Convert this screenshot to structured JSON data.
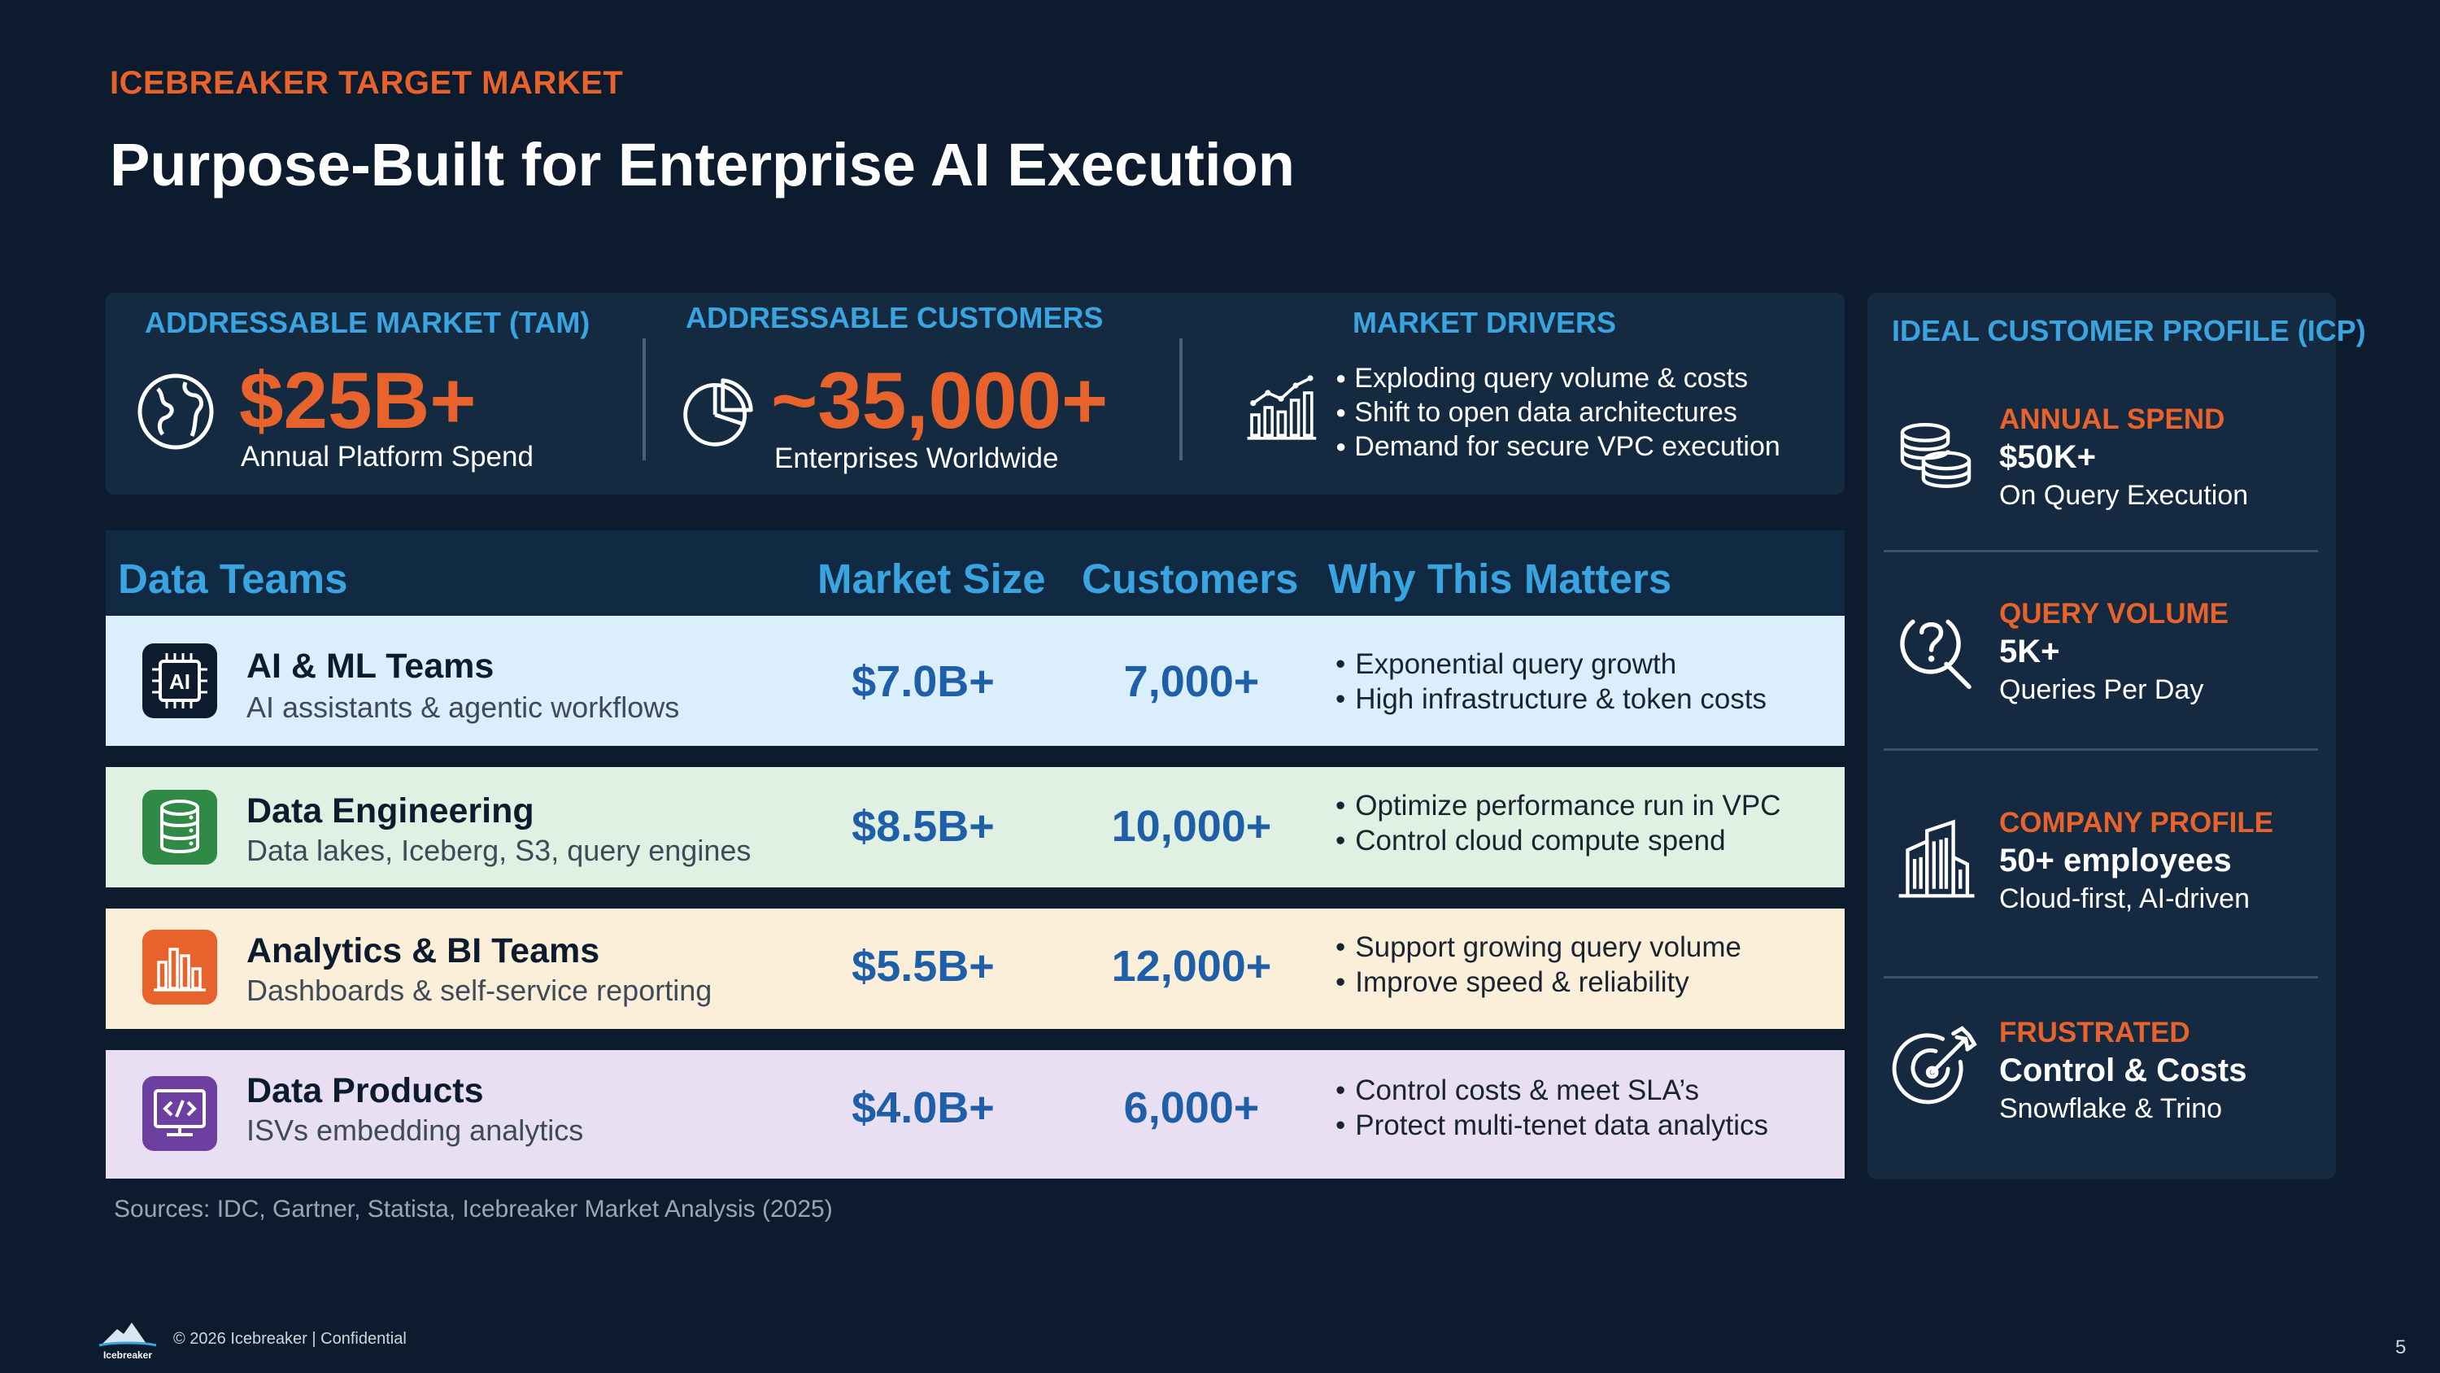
{
  "eyebrow": "ICEBREAKER TARGET MARKET",
  "title": "Purpose-Built for Enterprise AI Execution",
  "stats": {
    "tam": {
      "label": "ADDRESSABLE MARKET (TAM)",
      "value": "$25B+",
      "sub": "Annual Platform Spend",
      "icon": "globe-icon"
    },
    "customers": {
      "label": "ADDRESSABLE CUSTOMERS",
      "value": "~35,000+",
      "sub": "Enterprises Worldwide",
      "icon": "pie-chart-icon"
    },
    "drivers": {
      "label": "MARKET DRIVERS",
      "icon": "growth-chart-icon",
      "items": [
        "Exploding query volume & costs",
        "Shift to open data architectures",
        "Demand for secure VPC execution"
      ]
    }
  },
  "table": {
    "headers": [
      "Data Teams",
      "Market Size",
      "Customers",
      "Why This Matters"
    ],
    "rows": [
      {
        "name": "AI & ML Teams",
        "desc": "AI assistants & agentic workflows",
        "market": "$7.0B+",
        "customers": "7,000+",
        "why": [
          "Exponential query growth",
          "High infrastructure & token costs"
        ],
        "icon": "ai-chip-icon",
        "icon_text": "AI",
        "bg": "#dbeefb",
        "icon_bg": "#0d1b2e"
      },
      {
        "name": "Data Engineering",
        "desc": "Data lakes, Iceberg, S3, query engines",
        "market": "$8.5B+",
        "customers": "10,000+",
        "why": [
          "Optimize performance run in VPC",
          "Control cloud compute spend"
        ],
        "icon": "database-icon",
        "bg": "#e0f0e2",
        "icon_bg": "#2f8a45"
      },
      {
        "name": "Analytics & BI Teams",
        "desc": "Dashboards & self-service reporting",
        "market": "$5.5B+",
        "customers": "12,000+",
        "why": [
          "Support growing query volume",
          "Improve speed & reliability"
        ],
        "icon": "bar-chart-icon",
        "bg": "#fcefd9",
        "icon_bg": "#e8622c"
      },
      {
        "name": "Data Products",
        "desc": "ISVs embedding analytics",
        "market": "$4.0B+",
        "customers": "6,000+",
        "why": [
          "Control costs & meet SLA’s",
          "Protect multi-tenet data analytics"
        ],
        "icon": "code-monitor-icon",
        "bg": "#e8dff3",
        "icon_bg": "#6c3fa0"
      }
    ]
  },
  "sources": "Sources: IDC, Gartner, Statista, Icebreaker Market Analysis (2025)",
  "icp": {
    "title": "IDEAL CUSTOMER PROFILE (ICP)",
    "sections": [
      {
        "label": "ANNUAL SPEND",
        "value": "$50K+",
        "sub": "On Query Execution",
        "icon": "coins-icon"
      },
      {
        "label": "QUERY VOLUME",
        "value": "5K+",
        "sub": "Queries Per Day",
        "icon": "search-question-icon"
      },
      {
        "label": "COMPANY PROFILE",
        "value": "50+ employees",
        "sub": "Cloud-first, AI-driven",
        "icon": "building-icon"
      },
      {
        "label": "FRUSTRATED",
        "value": "Control & Costs",
        "sub": "Snowflake & Trino",
        "icon": "target-icon"
      }
    ]
  },
  "footer": {
    "text": "© 2026 Icebreaker |  Confidential",
    "logo_text": "Icebreaker",
    "page": "5"
  },
  "colors": {
    "background": "#0d1b2e",
    "accent_orange": "#e8622c",
    "accent_blue": "#3aa4e0",
    "number_blue": "#1f5fa8"
  }
}
